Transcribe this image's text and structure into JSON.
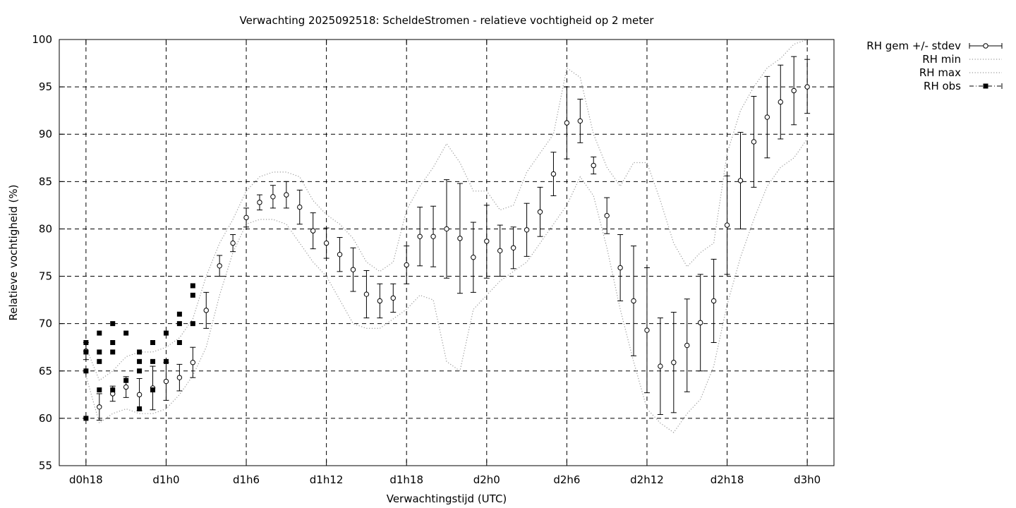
{
  "chart_data": {
    "type": "scatter",
    "title": "Verwachting 2025092518: ScheldeStromen - relatieve vochtigheid op 2 meter",
    "xlabel": "Verwachtingstijd (UTC)",
    "ylabel": "Relatieve vochtigheid (%)",
    "xlim": [
      -2,
      56
    ],
    "ylim": [
      55,
      100
    ],
    "grid": true,
    "legend_position": "outside-top-right",
    "x_unit": "hours since d0h18",
    "x_ticks": [
      {
        "x": 0,
        "label": "d0h18"
      },
      {
        "x": 6,
        "label": "d1h0"
      },
      {
        "x": 12,
        "label": "d1h6"
      },
      {
        "x": 18,
        "label": "d1h12"
      },
      {
        "x": 24,
        "label": "d1h18"
      },
      {
        "x": 30,
        "label": "d2h0"
      },
      {
        "x": 36,
        "label": "d2h6"
      },
      {
        "x": 42,
        "label": "d2h12"
      },
      {
        "x": 48,
        "label": "d2h18"
      },
      {
        "x": 54,
        "label": "d3h0"
      }
    ],
    "y_ticks": [
      55,
      60,
      65,
      70,
      75,
      80,
      85,
      90,
      95,
      100
    ],
    "legend": [
      {
        "label": "RH gem +/- stdev",
        "style": "errorbar-circle"
      },
      {
        "label": "RH min",
        "style": "dotted"
      },
      {
        "label": "RH max",
        "style": "dotted"
      },
      {
        "label": "RH obs",
        "style": "square-dashdot"
      }
    ],
    "series": [
      {
        "name": "RH gem +/- stdev",
        "x": [
          0,
          1,
          2,
          3,
          4,
          5,
          6,
          7,
          8,
          9,
          10,
          11,
          12,
          13,
          14,
          15,
          16,
          17,
          18,
          19,
          20,
          21,
          22,
          23,
          24,
          25,
          26,
          27,
          28,
          29,
          30,
          31,
          32,
          33,
          34,
          35,
          36,
          37,
          38,
          39,
          40,
          41,
          42,
          43,
          44,
          45,
          46,
          47,
          48,
          49,
          50,
          51,
          52,
          53,
          54
        ],
        "mean": [
          67.1,
          61.2,
          62.6,
          63.3,
          62.5,
          63.2,
          63.9,
          64.3,
          65.9,
          71.4,
          76.1,
          78.5,
          81.2,
          82.8,
          83.4,
          83.6,
          82.3,
          79.8,
          78.5,
          77.3,
          75.7,
          73.1,
          72.4,
          72.7,
          76.2,
          79.2,
          79.2,
          80.0,
          79.0,
          77.0,
          78.7,
          77.7,
          78.0,
          79.9,
          81.8,
          85.8,
          91.2,
          91.4,
          86.7,
          81.4,
          75.9,
          72.4,
          69.3,
          65.5,
          65.9,
          67.7,
          70.1,
          72.4,
          80.4,
          85.1,
          89.2,
          91.8,
          93.4,
          94.6,
          95.0
        ],
        "low": [
          66.2,
          59.8,
          61.8,
          62.2,
          60.8,
          60.9,
          61.9,
          62.9,
          64.3,
          69.5,
          75.0,
          77.6,
          80.2,
          82.0,
          82.2,
          82.2,
          80.5,
          77.9,
          76.9,
          75.5,
          73.4,
          70.6,
          70.6,
          71.2,
          74.2,
          76.1,
          76.0,
          74.8,
          73.2,
          73.3,
          74.8,
          75.0,
          75.8,
          77.1,
          79.2,
          83.5,
          87.4,
          89.1,
          85.8,
          79.5,
          72.4,
          66.6,
          62.7,
          60.4,
          60.6,
          62.8,
          65.0,
          68.0,
          75.2,
          80.0,
          84.4,
          87.5,
          89.5,
          91.0,
          92.2
        ],
        "high": [
          68.0,
          62.6,
          63.4,
          64.4,
          64.2,
          65.5,
          65.9,
          65.7,
          67.5,
          73.3,
          77.2,
          79.4,
          82.2,
          83.6,
          84.6,
          85.0,
          84.1,
          81.7,
          80.1,
          79.1,
          78.0,
          75.6,
          74.2,
          74.2,
          78.2,
          82.3,
          82.4,
          85.2,
          84.8,
          80.7,
          82.5,
          80.4,
          80.2,
          82.7,
          84.4,
          88.1,
          95.0,
          93.7,
          87.6,
          83.3,
          79.4,
          78.2,
          75.9,
          70.6,
          71.2,
          72.6,
          75.2,
          76.8,
          85.6,
          90.2,
          94.0,
          96.1,
          97.3,
          98.2,
          97.9
        ]
      },
      {
        "name": "RH min",
        "x": [
          0,
          1,
          2,
          3,
          4,
          5,
          6,
          7,
          8,
          9,
          10,
          11,
          12,
          13,
          14,
          15,
          16,
          17,
          18,
          19,
          20,
          21,
          22,
          23,
          24,
          25,
          26,
          27,
          28,
          29,
          30,
          31,
          32,
          33,
          34,
          35,
          36,
          37,
          38,
          39,
          40,
          41,
          42,
          43,
          44,
          45,
          46,
          47,
          48,
          49,
          50,
          51,
          52,
          53,
          54
        ],
        "values": [
          64.5,
          59.5,
          60.5,
          61.0,
          60.5,
          60.5,
          61.0,
          62.5,
          64.5,
          67.5,
          73.0,
          77.5,
          80.5,
          81.0,
          81.0,
          80.5,
          78.5,
          76.5,
          75.0,
          72.5,
          70.0,
          69.5,
          69.5,
          70.5,
          71.5,
          73.0,
          72.5,
          66.0,
          65.0,
          71.5,
          73.0,
          74.5,
          75.5,
          76.5,
          78.5,
          80.5,
          82.5,
          85.5,
          83.5,
          78.0,
          71.5,
          66.0,
          61.0,
          59.5,
          58.5,
          60.5,
          62.0,
          65.5,
          72.0,
          77.0,
          81.0,
          84.5,
          86.5,
          87.5,
          89.5
        ]
      },
      {
        "name": "RH max",
        "x": [
          0,
          1,
          2,
          3,
          4,
          5,
          6,
          7,
          8,
          9,
          10,
          11,
          12,
          13,
          14,
          15,
          16,
          17,
          18,
          19,
          20,
          21,
          22,
          23,
          24,
          25,
          26,
          27,
          28,
          29,
          30,
          31,
          32,
          33,
          34,
          35,
          36,
          37,
          38,
          39,
          40,
          41,
          42,
          43,
          44,
          45,
          46,
          47,
          48,
          49,
          50,
          51,
          52,
          53,
          54
        ],
        "values": [
          67.5,
          64.0,
          65.0,
          66.5,
          67.0,
          67.0,
          67.5,
          68.5,
          70.5,
          75.0,
          78.5,
          81.0,
          84.0,
          85.5,
          86.0,
          86.0,
          85.5,
          83.0,
          81.5,
          80.5,
          79.0,
          76.5,
          75.5,
          76.5,
          82.0,
          84.5,
          86.5,
          89.0,
          87.0,
          84.0,
          84.0,
          82.0,
          82.5,
          86.0,
          88.0,
          90.0,
          97.0,
          96.0,
          90.0,
          86.5,
          84.5,
          87.0,
          87.0,
          83.0,
          78.5,
          76.0,
          77.5,
          78.5,
          88.0,
          92.5,
          95.0,
          97.0,
          98.0,
          99.5,
          100.0
        ]
      },
      {
        "name": "RH obs",
        "points": [
          [
            0,
            68
          ],
          [
            0,
            67
          ],
          [
            0,
            65
          ],
          [
            0,
            60
          ],
          [
            1,
            69
          ],
          [
            1,
            67
          ],
          [
            1,
            66
          ],
          [
            1,
            63
          ],
          [
            2,
            70
          ],
          [
            2,
            68
          ],
          [
            2,
            67
          ],
          [
            2,
            63
          ],
          [
            3,
            69
          ],
          [
            3,
            64
          ],
          [
            4,
            67
          ],
          [
            4,
            66
          ],
          [
            4,
            65
          ],
          [
            4,
            61
          ],
          [
            5,
            68
          ],
          [
            5,
            66
          ],
          [
            5,
            63
          ],
          [
            6,
            69
          ],
          [
            6,
            66
          ],
          [
            7,
            71
          ],
          [
            7,
            70
          ],
          [
            7,
            68
          ],
          [
            8,
            74
          ],
          [
            8,
            73
          ],
          [
            8,
            70
          ]
        ]
      }
    ]
  }
}
